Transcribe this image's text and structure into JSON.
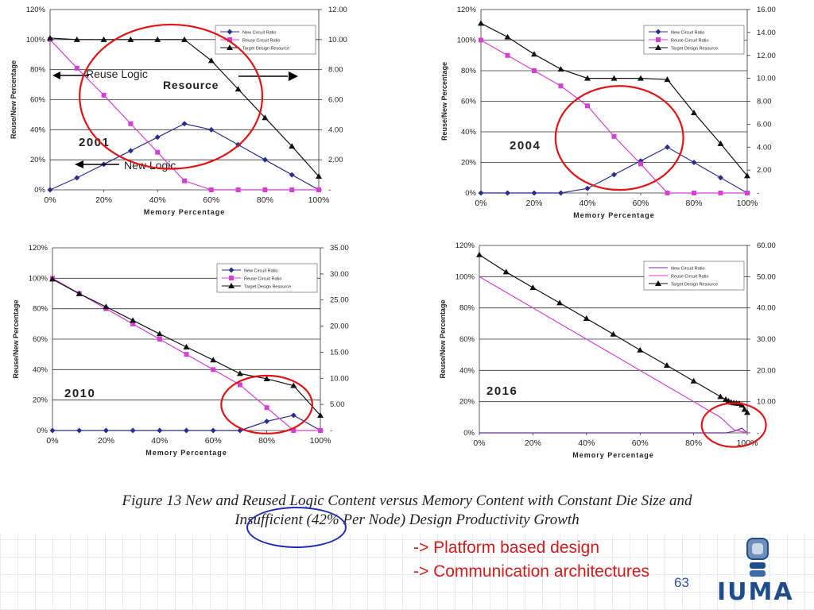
{
  "slide": {
    "caption_line1": "Figure 13  New and Reused Logic Content versus Memory Content with Constant Die Size and",
    "caption_line2": "Insufficient (42% Per Node) Design Productivity Growth",
    "bullets": [
      "-> Platform based design",
      "-> Communication architectures"
    ],
    "page_number": "63",
    "logo_text": "IUMA",
    "colors": {
      "bullet": "#d11c1c",
      "highlight_ellipse": "#e01414",
      "logo": "#1f4d8c"
    }
  },
  "chart_data": [
    {
      "type": "line",
      "year": "2001",
      "xlabel": "Memory Percentage",
      "ylabel": "Reuse/New Percentage",
      "x": [
        0,
        10,
        20,
        30,
        40,
        50,
        60,
        70,
        80,
        90,
        100
      ],
      "x_ticks": [
        "0%",
        "20%",
        "40%",
        "60%",
        "80%",
        "100%"
      ],
      "y_ticks": [
        "0%",
        "20%",
        "40%",
        "60%",
        "80%",
        "100%",
        "120%"
      ],
      "y2_ticks": [
        "-",
        "2.00",
        "4.00",
        "6.00",
        "8.00",
        "10.00",
        "12.00"
      ],
      "ylim": [
        0,
        120
      ],
      "y2lim": [
        0,
        12
      ],
      "legend": "top-right",
      "series": [
        {
          "name": "New Circuit Ratio",
          "axis": "left",
          "marker": "diamond",
          "color": "#2a2f8f",
          "values": [
            0,
            8,
            17,
            26,
            35,
            44,
            40,
            30,
            20,
            10,
            0
          ]
        },
        {
          "name": "Reuse Circuit Ratio",
          "axis": "left",
          "marker": "square",
          "color": "#d63fd6",
          "values": [
            100,
            81,
            63,
            44,
            25,
            6,
            0,
            0,
            0,
            0,
            0
          ]
        },
        {
          "name": "Target Design Resource",
          "axis": "right",
          "marker": "triangle",
          "color": "#111111",
          "values": [
            10.1,
            10.0,
            10.0,
            10.0,
            10.0,
            10.0,
            8.6,
            6.7,
            4.8,
            2.9,
            0.9
          ]
        }
      ],
      "annotations": {
        "reuse": "Reuse Logic",
        "resource": "Resource",
        "new": "New Logic"
      },
      "circle": {
        "cx": 45,
        "cy": 62,
        "rx": 34,
        "ry": 48
      }
    },
    {
      "type": "line",
      "year": "2004",
      "xlabel": "Memory Percentage",
      "ylabel": "Reuse/New Percentage",
      "x": [
        0,
        10,
        20,
        30,
        40,
        50,
        60,
        70,
        80,
        90,
        100
      ],
      "x_ticks": [
        "0%",
        "20%",
        "40%",
        "60%",
        "80%",
        "100%"
      ],
      "y_ticks": [
        "0%",
        "20%",
        "40%",
        "60%",
        "80%",
        "100%",
        "120%"
      ],
      "y2_ticks": [
        "-",
        "2.00",
        "4.00",
        "6.00",
        "8.00",
        "10.00",
        "12.00",
        "14.00",
        "16.00"
      ],
      "ylim": [
        0,
        120
      ],
      "y2lim": [
        0,
        16
      ],
      "legend": "top-right",
      "series": [
        {
          "name": "New Circuit Ratio",
          "axis": "left",
          "marker": "diamond",
          "color": "#2a2f8f",
          "values": [
            0,
            0,
            0,
            0,
            3,
            12,
            21,
            30,
            20,
            10,
            0
          ]
        },
        {
          "name": "Reuse Circuit Ratio",
          "axis": "left",
          "marker": "square",
          "color": "#d63fd6",
          "values": [
            100,
            90,
            80,
            70,
            57,
            37,
            19,
            0,
            0,
            0,
            0
          ]
        },
        {
          "name": "Target Design Resource",
          "axis": "right",
          "marker": "triangle",
          "color": "#111111",
          "values": [
            14.8,
            13.6,
            12.1,
            10.8,
            10.0,
            10.0,
            10.0,
            9.9,
            7.0,
            4.3,
            1.5
          ]
        }
      ],
      "circle": {
        "cx": 52,
        "cy": 36,
        "rx": 24,
        "ry": 34
      }
    },
    {
      "type": "line",
      "year": "2010",
      "xlabel": "Memory Percentage",
      "ylabel": "Reuse/New Percentage",
      "x": [
        0,
        10,
        20,
        30,
        40,
        50,
        60,
        70,
        80,
        90,
        100
      ],
      "x_ticks": [
        "0%",
        "20%",
        "40%",
        "60%",
        "80%",
        "100%"
      ],
      "y_ticks": [
        "0%",
        "20%",
        "40%",
        "60%",
        "80%",
        "100%",
        "120%"
      ],
      "y2_ticks": [
        "-",
        "5.00",
        "10.00",
        "15.00",
        "20.00",
        "25.00",
        "30.00",
        "35.00"
      ],
      "ylim": [
        0,
        120
      ],
      "y2lim": [
        0,
        35
      ],
      "legend": "top-right",
      "series": [
        {
          "name": "New Circuit Ratio",
          "axis": "left",
          "marker": "diamond",
          "color": "#2a2f8f",
          "values": [
            0,
            0,
            0,
            0,
            0,
            0,
            0,
            0,
            6,
            10,
            0
          ]
        },
        {
          "name": "Reuse Circuit Ratio",
          "axis": "left",
          "marker": "square",
          "color": "#d63fd6",
          "values": [
            100,
            90,
            80,
            70,
            60,
            50,
            40,
            30,
            15,
            0,
            0
          ]
        },
        {
          "name": "Target Design Resource",
          "axis": "right",
          "marker": "triangle",
          "color": "#111111",
          "values": [
            29.0,
            26.2,
            23.7,
            21.1,
            18.5,
            16.0,
            13.5,
            10.9,
            9.9,
            8.6,
            2.9
          ]
        }
      ],
      "circle": {
        "cx": 80,
        "cy": 17,
        "rx": 17,
        "ry": 19
      }
    },
    {
      "type": "line",
      "year": "2016",
      "xlabel": "Memory Percentage",
      "ylabel": "Reuse/New Percentage",
      "x_ticks": [
        "0%",
        "20%",
        "40%",
        "60%",
        "80%",
        "100%"
      ],
      "y_ticks": [
        "0%",
        "20%",
        "40%",
        "60%",
        "80%",
        "100%",
        "120%"
      ],
      "y2_ticks": [
        "-",
        "10.00",
        "20.00",
        "30.00",
        "40.00",
        "50.00",
        "60.00"
      ],
      "ylim": [
        0,
        120
      ],
      "y2lim": [
        0,
        60
      ],
      "legend": "top-right",
      "series": [
        {
          "name": "New Circuit Ratio",
          "axis": "left",
          "marker": "none",
          "color": "#6b2fa0",
          "x": [
            0,
            92,
            95,
            98,
            100
          ],
          "values": [
            0,
            0,
            1,
            3,
            0
          ]
        },
        {
          "name": "Reuse Circuit Ratio",
          "axis": "left",
          "marker": "none",
          "color": "#d63fd6",
          "x": [
            0,
            10,
            20,
            30,
            40,
            50,
            60,
            70,
            80,
            90,
            95,
            100
          ],
          "values": [
            100,
            90,
            80,
            70,
            60,
            50,
            40,
            30,
            20,
            10,
            2,
            0
          ]
        },
        {
          "name": "Target Design Resource",
          "axis": "right",
          "marker": "triangle",
          "color": "#111111",
          "x": [
            0,
            10,
            20,
            30,
            40,
            50,
            60,
            70,
            80,
            90,
            92,
            93,
            94,
            95,
            96,
            97,
            98,
            99,
            100
          ],
          "values": [
            57,
            51.5,
            46.5,
            41.6,
            36.6,
            31.6,
            26.5,
            21.6,
            16.6,
            11.6,
            10.7,
            10.2,
            9.8,
            9.6,
            9.5,
            9.4,
            8.9,
            7.5,
            6.5
          ]
        }
      ],
      "circle": {
        "cx": 95,
        "cy": 5,
        "rx": 12,
        "ry": 14
      }
    }
  ]
}
